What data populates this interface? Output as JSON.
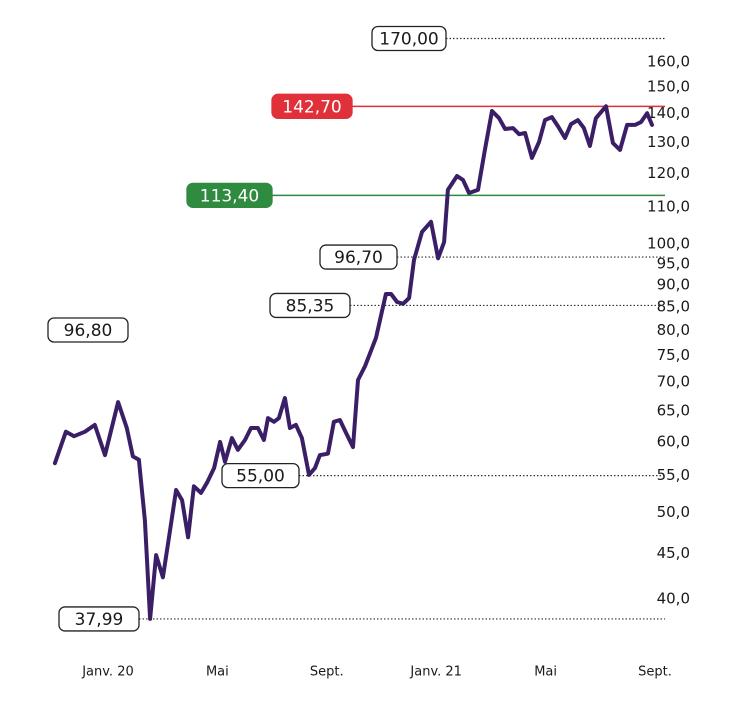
{
  "chart_data": {
    "type": "line",
    "color": "#3a1f66",
    "log_scale": true,
    "xlim": [
      -2.2,
      20.6
    ],
    "ylim": [
      36,
      174
    ],
    "xticks": [
      {
        "value": 0,
        "label": "Janv. 20"
      },
      {
        "value": 4,
        "label": "Mai"
      },
      {
        "value": 8,
        "label": "Sept."
      },
      {
        "value": 12,
        "label": "Janv. 21"
      },
      {
        "value": 16,
        "label": "Mai"
      },
      {
        "value": 20,
        "label": "Sept."
      }
    ],
    "yticks": [
      {
        "value": 40,
        "label": "40,0"
      },
      {
        "value": 45,
        "label": "45,0"
      },
      {
        "value": 50,
        "label": "50,0"
      },
      {
        "value": 55,
        "label": "55,0"
      },
      {
        "value": 60,
        "label": "60,0"
      },
      {
        "value": 65,
        "label": "65,0"
      },
      {
        "value": 70,
        "label": "70,0"
      },
      {
        "value": 75,
        "label": "75,0"
      },
      {
        "value": 80,
        "label": "80,0"
      },
      {
        "value": 85,
        "label": "85,0"
      },
      {
        "value": 90,
        "label": "90,0"
      },
      {
        "value": 95,
        "label": "95,0"
      },
      {
        "value": 100,
        "label": "100,0"
      },
      {
        "value": 110,
        "label": "110,0"
      },
      {
        "value": 120,
        "label": "120,0"
      },
      {
        "value": 130,
        "label": "130,0"
      },
      {
        "value": 140,
        "label": "140,0"
      },
      {
        "value": 150,
        "label": "150,0"
      },
      {
        "value": 160,
        "label": "160,0"
      }
    ],
    "x": [
      -1.94,
      -1.54,
      -1.24,
      -0.84,
      -0.48,
      -0.11,
      0.37,
      0.69,
      0.91,
      1.13,
      1.35,
      1.54,
      1.76,
      2.01,
      2.27,
      2.49,
      2.71,
      2.93,
      3.14,
      3.4,
      3.62,
      3.88,
      4.1,
      4.28,
      4.53,
      4.75,
      5.01,
      5.23,
      5.48,
      5.7,
      5.85,
      6.07,
      6.25,
      6.47,
      6.65,
      6.87,
      7.09,
      7.35,
      7.57,
      7.75,
      8.04,
      8.26,
      8.48,
      8.74,
      8.96,
      9.14,
      9.4,
      9.8,
      10.16,
      10.35,
      10.57,
      10.79,
      11.01,
      11.19,
      11.48,
      11.81,
      12.07,
      12.29,
      12.43,
      12.76,
      12.98,
      13.2,
      13.53,
      13.78,
      14.04,
      14.3,
      14.52,
      14.81,
      15.03,
      15.25,
      15.5,
      15.76,
      15.98,
      16.23,
      16.45,
      16.71,
      16.93,
      17.18,
      17.4,
      17.62,
      17.84,
      18.21,
      18.46,
      18.72,
      18.98,
      19.27,
      19.49,
      19.71,
      19.89
    ],
    "values": [
      56.8,
      61.6,
      60.9,
      61.6,
      62.7,
      58.0,
      66.5,
      62.2,
      57.8,
      57.3,
      49.0,
      38.0,
      44.8,
      42.3,
      47.8,
      53.0,
      51.6,
      46.9,
      53.5,
      52.6,
      54.0,
      56.1,
      60.0,
      57.0,
      60.6,
      58.8,
      60.3,
      62.2,
      62.2,
      60.3,
      63.8,
      63.2,
      63.8,
      67.2,
      62.2,
      62.7,
      60.6,
      55.1,
      56.1,
      58.0,
      58.2,
      63.2,
      63.5,
      61.1,
      59.2,
      70.4,
      73.0,
      78.5,
      87.9,
      87.9,
      86.1,
      85.7,
      87.0,
      96.0,
      103.2,
      105.9,
      96.4,
      100.5,
      115.0,
      119.2,
      118.0,
      114.1,
      115.0,
      127.5,
      141.0,
      138.4,
      134.6,
      134.9,
      132.8,
      133.2,
      124.9,
      130.1,
      137.7,
      138.8,
      135.6,
      131.5,
      136.3,
      137.7,
      134.9,
      128.8,
      138.4,
      142.7,
      129.8,
      127.5,
      136.0,
      136.0,
      137.0,
      140.2,
      136.0
    ],
    "annotations": [
      {
        "value": 170,
        "label": "170,00",
        "style": "dotted"
      },
      {
        "value": 142.7,
        "label": "142,70",
        "style": "solid",
        "color": "#e0313b"
      },
      {
        "value": 113.4,
        "label": "113,40",
        "style": "solid",
        "color": "#2e8b3f"
      },
      {
        "value": 96.7,
        "label": "96,70",
        "style": "dotted"
      },
      {
        "value": 85.35,
        "label": "85,35",
        "style": "dotted"
      },
      {
        "value": 96.8,
        "label": "96,80",
        "style": "box"
      },
      {
        "value": 55,
        "label": "55,00",
        "style": "dotted"
      },
      {
        "value": 37.99,
        "label": "37,99",
        "style": "dotted"
      }
    ]
  }
}
